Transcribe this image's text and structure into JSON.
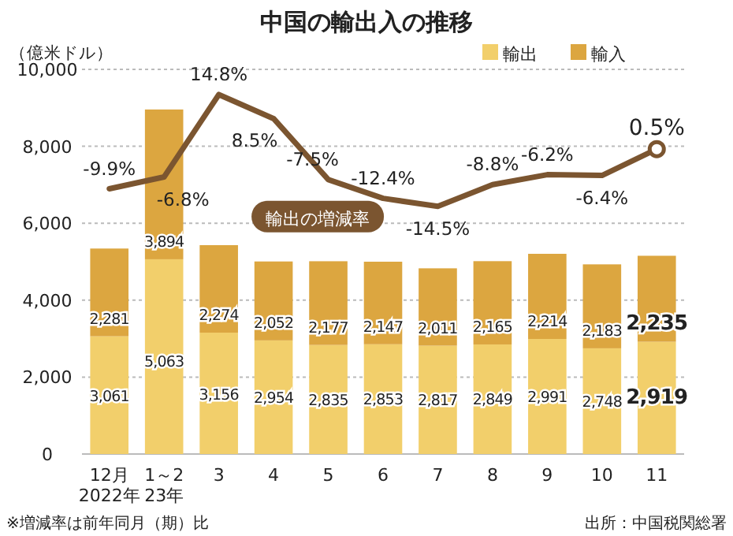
{
  "chart_data": {
    "type": "bar",
    "title": "中国の輸出入の推移",
    "ylabel": "（億米ドル）",
    "categories": [
      "12月\n2022年",
      "1～2\n23年",
      "3",
      "4",
      "5",
      "6",
      "7",
      "8",
      "9",
      "10",
      "11"
    ],
    "stacked": true,
    "data_labels": true,
    "legend": "top right",
    "grid": "y",
    "ylim": [
      0,
      10000
    ],
    "yticks": [
      0,
      {
        "value": 2000,
        "label": "2,000"
      },
      {
        "value": 4000,
        "label": "4,000"
      },
      {
        "value": 6000,
        "label": "6,000"
      },
      {
        "value": 8000,
        "label": "8,000"
      },
      {
        "value": 10000,
        "label": "10,000"
      }
    ],
    "y2lim": [
      -79.4,
      21.4
    ],
    "series": [
      {
        "name": "輸出",
        "color": "#f2cf6b",
        "values": [
          3061,
          5063,
          3156,
          2954,
          2835,
          2853,
          2817,
          2849,
          2991,
          2748,
          2919
        ],
        "value_labels": [
          "3,061",
          "5,063",
          "3,156",
          "2,954",
          "2,835",
          "2,853",
          "2,817",
          "2,849",
          "2,991",
          "2,748",
          "2,919"
        ]
      },
      {
        "name": "輸入",
        "color": "#dca640",
        "values": [
          2281,
          3894,
          2274,
          2052,
          2177,
          2147,
          2011,
          2165,
          2214,
          2183,
          2235
        ],
        "value_labels": [
          "2,281",
          "3,894",
          "2,274",
          "2,052",
          "2,177",
          "2,147",
          "2,011",
          "2,165",
          "2,214",
          "2,183",
          "2,235"
        ]
      },
      {
        "name": "輸出の増減率",
        "type": "line",
        "axis": "y2",
        "color": "#7b5530",
        "values": [
          -9.9,
          -6.8,
          14.8,
          8.5,
          -7.5,
          -12.4,
          -14.5,
          -8.8,
          -6.2,
          -6.4,
          0.5
        ],
        "value_labels": [
          "-9.9%",
          "-6.8%",
          "14.8%",
          "8.5%",
          "-7.5%",
          "-12.4%",
          "-14.5%",
          "-8.8%",
          "-6.2%",
          "-6.4%",
          "0.5%"
        ]
      }
    ],
    "annotations": [
      "※増減率は前年同月（期）比",
      "出所：中国税関総署"
    ]
  }
}
